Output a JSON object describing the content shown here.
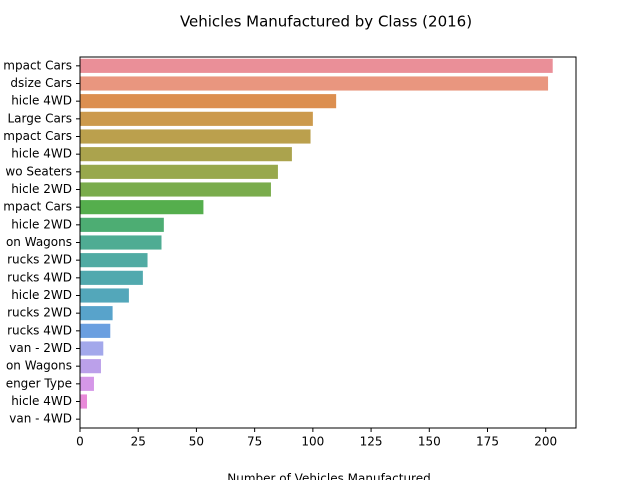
{
  "chart_data": {
    "type": "barh",
    "title": "Vehicles Manufactured by Class (2016)",
    "x_label": "Number of Vehicles Manufactured",
    "categories": [
      "mpact Cars",
      "dsize Cars",
      "hicle 4WD",
      "Large Cars",
      "mpact Cars",
      "hicle 4WD",
      "wo Seaters",
      "hicle 2WD",
      "mpact Cars",
      "hicle 2WD",
      "on Wagons",
      "rucks 2WD",
      "rucks 4WD",
      "hicle 2WD",
      "rucks 2WD",
      "rucks 4WD",
      "van - 2WD",
      "on Wagons",
      "enger Type",
      "hicle 4WD",
      "van - 4WD"
    ],
    "values": [
      203,
      201,
      110,
      100,
      99,
      91,
      85,
      82,
      53,
      36,
      35,
      29,
      27,
      21,
      14,
      13,
      10,
      9,
      6,
      3,
      0
    ],
    "colors": [
      "#ea8f98",
      "#e9967f",
      "#dc8f50",
      "#cc9a4d",
      "#bba04d",
      "#aba34d",
      "#98a84c",
      "#7aac4c",
      "#55ae4d",
      "#4dad73",
      "#4fac93",
      "#50aba3",
      "#51a9ae",
      "#53a7ba",
      "#58a3cb",
      "#6a9fe0",
      "#a3a8eb",
      "#bba0ea",
      "#d597e8",
      "#e88ad9",
      "#eb8cbf"
    ],
    "xlim": [
      0,
      213
    ],
    "xticks": [
      0,
      25,
      50,
      75,
      100,
      125,
      150,
      175,
      200
    ]
  }
}
